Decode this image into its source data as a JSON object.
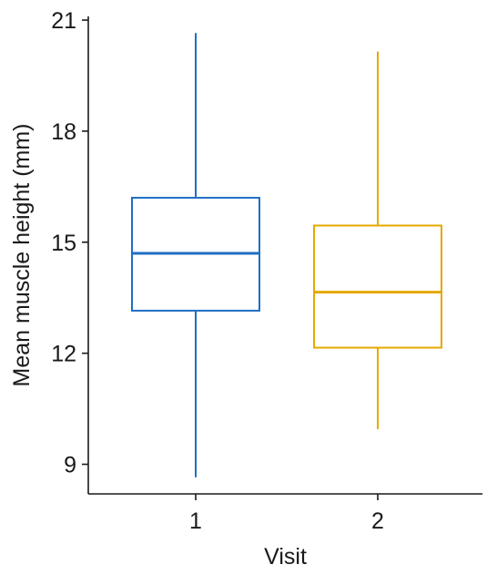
{
  "chart_data": {
    "type": "boxplot",
    "xlabel": "Visit",
    "ylabel": "Mean muscle height (mm)",
    "ylim": [
      8.2,
      21.1
    ],
    "yticks": [
      9,
      12,
      15,
      18,
      21
    ],
    "grid": false,
    "legend": "none",
    "categories": [
      "1",
      "2"
    ],
    "boxes": [
      {
        "category": "1",
        "whisker_low": 8.65,
        "q1": 13.15,
        "median": 14.7,
        "q3": 16.2,
        "whisker_high": 20.65,
        "color": "#1f6fc5"
      },
      {
        "category": "2",
        "whisker_low": 9.95,
        "q1": 12.15,
        "median": 13.65,
        "q3": 15.45,
        "whisker_high": 20.15,
        "color": "#e6a800"
      }
    ]
  }
}
